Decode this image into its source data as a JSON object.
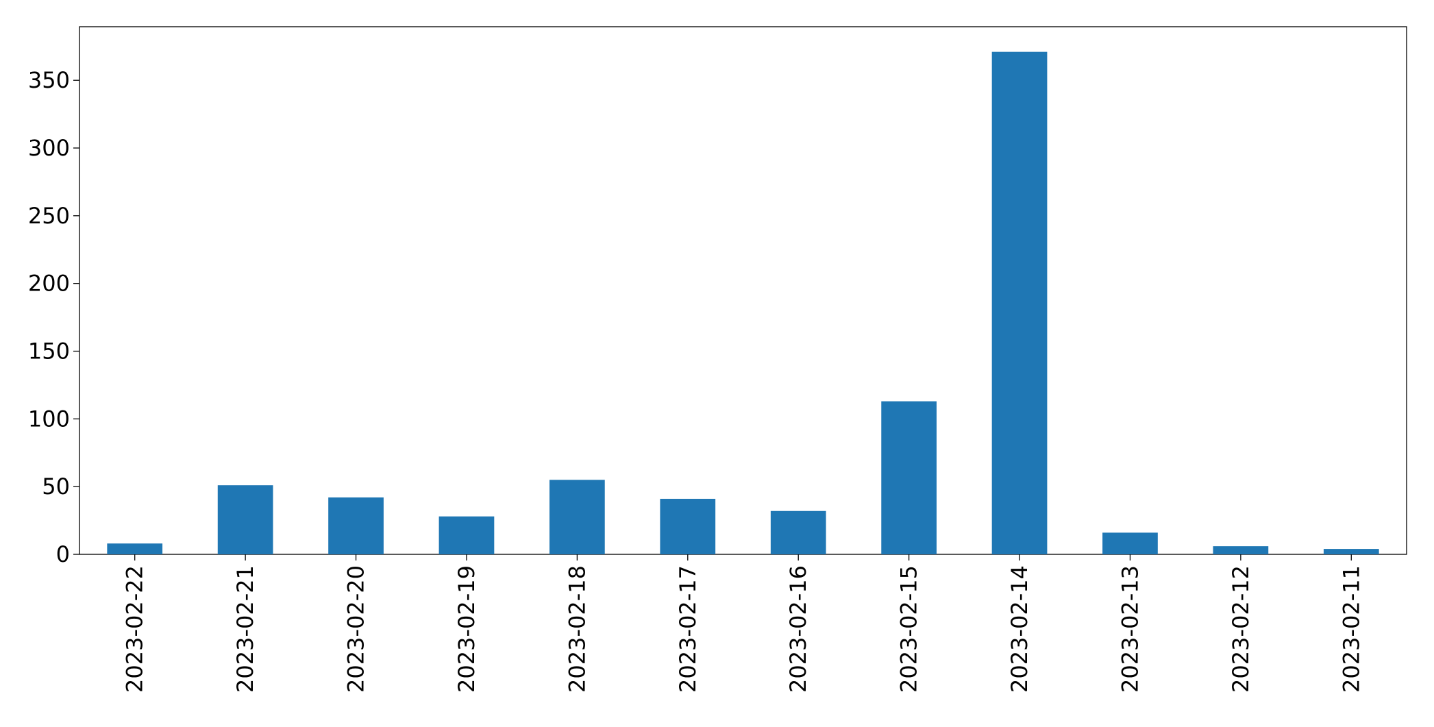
{
  "chart_data": {
    "type": "bar",
    "categories": [
      "2023-02-22",
      "2023-02-21",
      "2023-02-20",
      "2023-02-19",
      "2023-02-18",
      "2023-02-17",
      "2023-02-16",
      "2023-02-15",
      "2023-02-14",
      "2023-02-13",
      "2023-02-12",
      "2023-02-11"
    ],
    "values": [
      8,
      51,
      42,
      28,
      55,
      41,
      32,
      113,
      371,
      16,
      6,
      4
    ],
    "color": "#1f77b4",
    "ylim": [
      0,
      389.55
    ],
    "yticks": [
      0,
      50,
      100,
      150,
      200,
      250,
      300,
      350
    ],
    "grid": false
  }
}
